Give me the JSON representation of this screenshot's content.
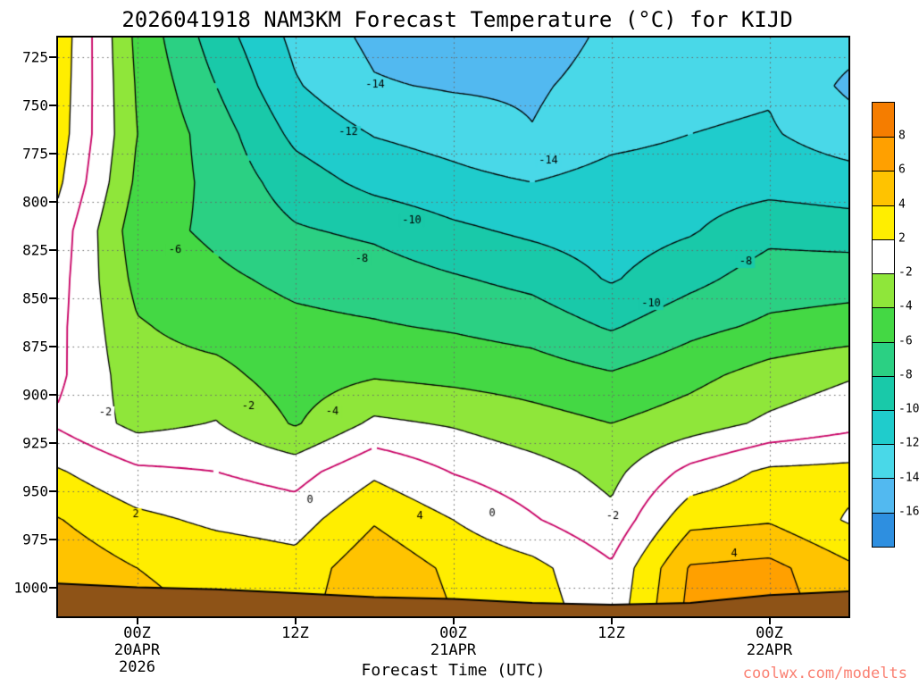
{
  "footer": {
    "watermark": "coolwx.com/modelts",
    "watermark_color": "#FA8072"
  },
  "chart_data": {
    "type": "heatmap",
    "subtype": "time-height filled contour cross-section",
    "title": "2026041918 NAM3KM Forecast Temperature (°C) for KIJD",
    "xlabel": "Forecast Time (UTC)",
    "ylabel": "",
    "x_hour_range": [
      0,
      60
    ],
    "time_hours": [
      0,
      6,
      12,
      18,
      24,
      30,
      36,
      42,
      48,
      54,
      60
    ],
    "x_ticks": [
      {
        "hour": 6,
        "lines": [
          "00Z",
          "20APR",
          "2026"
        ]
      },
      {
        "hour": 18,
        "lines": [
          "12Z"
        ]
      },
      {
        "hour": 30,
        "lines": [
          "00Z",
          "21APR"
        ]
      },
      {
        "hour": 42,
        "lines": [
          "12Z"
        ]
      },
      {
        "hour": 54,
        "lines": [
          "00Z",
          "22APR"
        ]
      }
    ],
    "pressure_levels": [
      715,
      740,
      765,
      790,
      815,
      840,
      865,
      890,
      915,
      940,
      965,
      990,
      1015
    ],
    "y_ticks": [
      725,
      750,
      775,
      800,
      825,
      850,
      875,
      900,
      925,
      950,
      975,
      1000
    ],
    "y_range_hpa": [
      715,
      1015
    ],
    "temperature_grid_c": [
      [
        3.4,
        -4.5,
        -9.0,
        -12.5,
        -14.5,
        -15.3,
        -15.0,
        -13.6,
        -12.8,
        -12.6,
        -13.2
      ],
      [
        3.2,
        -4.2,
        -8.0,
        -11.8,
        -13.8,
        -14.2,
        -14.3,
        -13.2,
        -12.4,
        -12.2,
        -14.4
      ],
      [
        3.0,
        -4.0,
        -7.0,
        -10.5,
        -12.1,
        -12.8,
        -13.9,
        -12.6,
        -12.0,
        -11.8,
        -13.0
      ],
      [
        2.4,
        -4.4,
        -6.6,
        -9.0,
        -10.6,
        -11.4,
        -12.0,
        -11.2,
        -11.0,
        -10.8,
        -11.2
      ],
      [
        1.2,
        -5.2,
        -6.4,
        -7.8,
        -8.4,
        -9.6,
        -10.4,
        -11.0,
        -10.2,
        -8.6,
        -9.0
      ],
      [
        0.8,
        -4.6,
        -5.6,
        -6.5,
        -7.0,
        -7.8,
        -8.6,
        -10.2,
        -8.6,
        -7.0,
        -6.8
      ],
      [
        0.5,
        -3.8,
        -4.8,
        -5.5,
        -5.8,
        -6.2,
        -6.8,
        -8.2,
        -6.6,
        -5.6,
        -5.2
      ],
      [
        0.4,
        -3.2,
        -3.4,
        -5.0,
        -4.2,
        -4.6,
        -5.0,
        -5.8,
        -4.6,
        -3.2,
        -2.2
      ],
      [
        -0.3,
        -2.6,
        -1.9,
        -4.2,
        -1.6,
        -2.2,
        -3.2,
        -4.0,
        -3.0,
        -1.6,
        -0.6
      ],
      [
        2.2,
        0.4,
        0.0,
        -0.8,
        1.6,
        -0.1,
        -1.2,
        -2.6,
        0.6,
        2.4,
        2.6
      ],
      [
        4.1,
        2.5,
        1.6,
        1.1,
        3.8,
        2.0,
        0.2,
        -1.5,
        3.4,
        3.8,
        1.8
      ],
      [
        5.3,
        4.0,
        3.4,
        2.8,
        5.4,
        3.6,
        2.6,
        0.3,
        6.2,
        6.6,
        4.4
      ],
      [
        5.8,
        4.5,
        3.8,
        3.2,
        5.8,
        4.0,
        3.0,
        0.8,
        6.6,
        7.0,
        5.0
      ]
    ],
    "surface_pressure_hpa": [
      998,
      1000,
      1001,
      1003,
      1005,
      1006,
      1008,
      1009,
      1008,
      1004,
      1002
    ],
    "contour_interval_c": 2,
    "contour_levels": [
      -16,
      -14,
      -12,
      -10,
      -8,
      -6,
      -4,
      -2,
      0,
      2,
      4,
      6,
      8
    ],
    "zero_contour_color": "#C80064",
    "negative_contour_style": "dashed",
    "positive_contour_style": "solid",
    "terrain_color": "#8E5317",
    "gridline_color": "#666666",
    "colorbar": {
      "boundaries": [
        8,
        6,
        4,
        2,
        -2,
        -4,
        -6,
        -8,
        -10,
        -12,
        -14,
        -16
      ],
      "colors": [
        "#F57D00",
        "#FFA000",
        "#FFC300",
        "#FFEE00",
        "#FFFFFF",
        "#8FE63A",
        "#44D844",
        "#2BD083",
        "#19C9A9",
        "#1FCCCC",
        "#49D8E8",
        "#52B9F0",
        "#2E8FE0"
      ]
    },
    "contour_labels": [
      {
        "text": "-14",
        "x": 420,
        "y": 95
      },
      {
        "text": "-12",
        "x": 390,
        "y": 148
      },
      {
        "text": "-14",
        "x": 614,
        "y": 180
      },
      {
        "text": "-10",
        "x": 461,
        "y": 247
      },
      {
        "text": "-6",
        "x": 196,
        "y": 280
      },
      {
        "text": "-8",
        "x": 405,
        "y": 290
      },
      {
        "text": "-8",
        "x": 835,
        "y": 293
      },
      {
        "text": "-10",
        "x": 729,
        "y": 340
      },
      {
        "text": "-2",
        "x": 118,
        "y": 462
      },
      {
        "text": "-2",
        "x": 278,
        "y": 455
      },
      {
        "text": "-4",
        "x": 372,
        "y": 461
      },
      {
        "text": "2",
        "x": 152,
        "y": 576
      },
      {
        "text": "0",
        "x": 347,
        "y": 560
      },
      {
        "text": "4",
        "x": 470,
        "y": 578
      },
      {
        "text": "0",
        "x": 551,
        "y": 575
      },
      {
        "text": "-2",
        "x": 686,
        "y": 578
      },
      {
        "text": "4",
        "x": 822,
        "y": 620
      }
    ]
  }
}
